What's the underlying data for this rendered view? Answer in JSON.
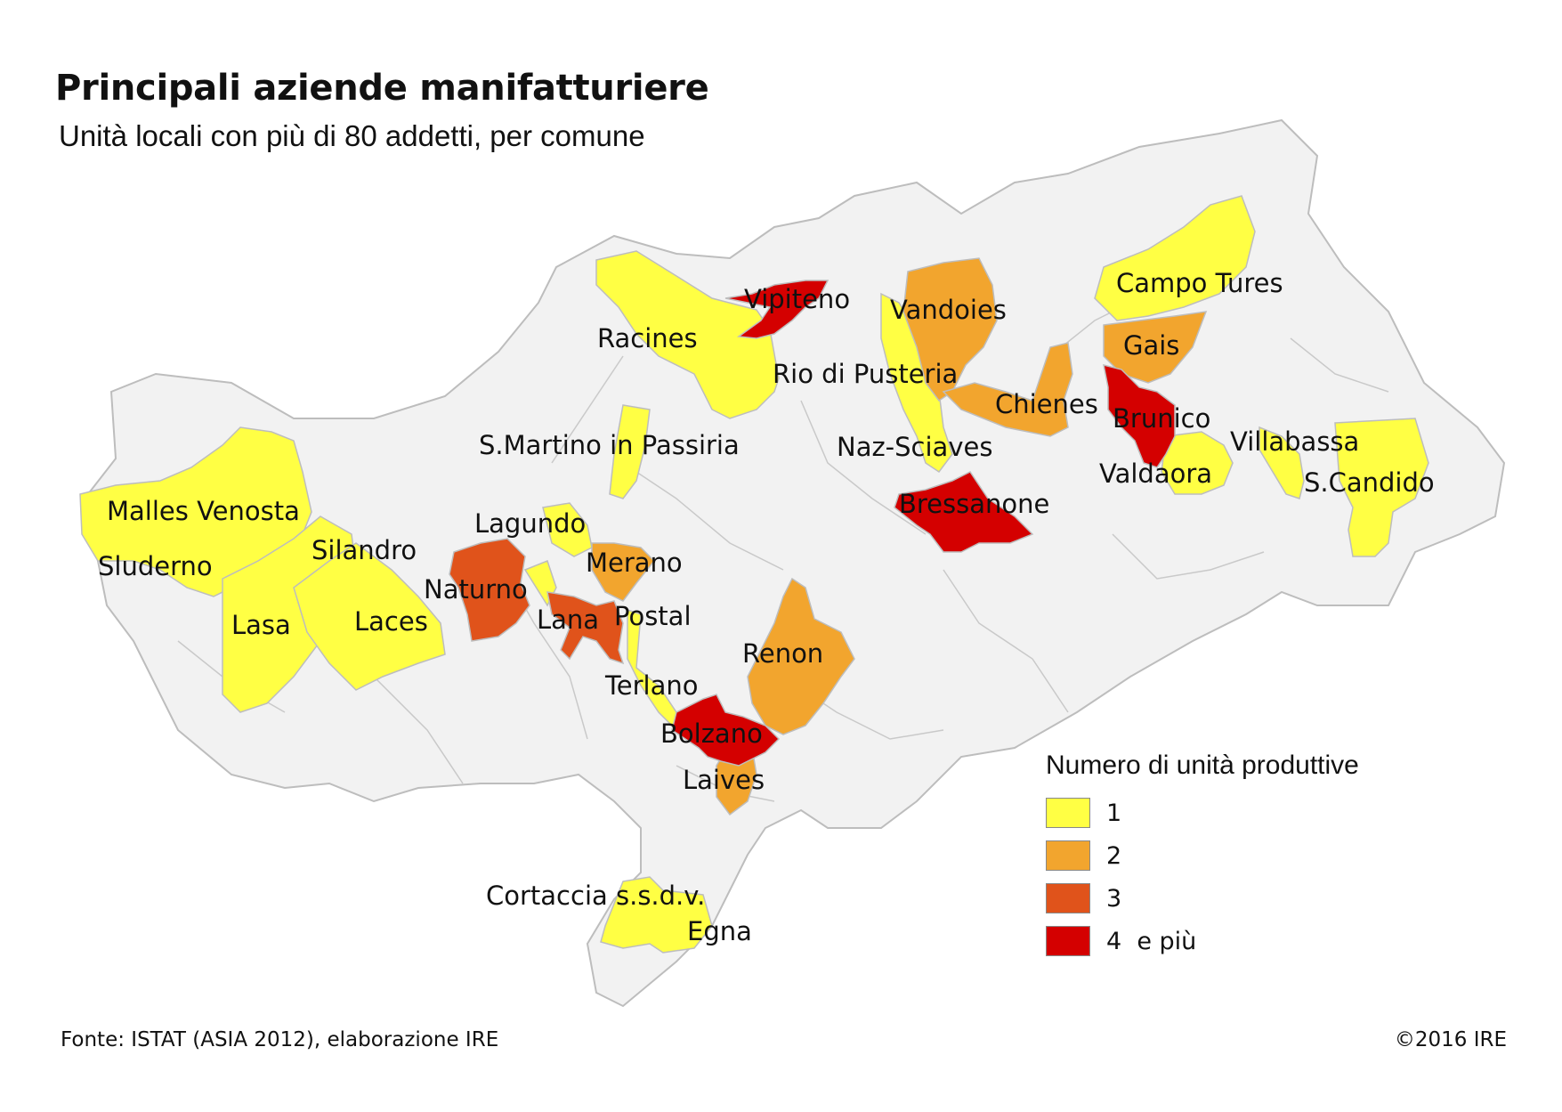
{
  "title": "Principali aziende manifatturiere",
  "subtitle": "Unità locali con più di 80 addetti, per comune",
  "colors": {
    "background_region": "#f2f2f2",
    "border": "#bdbdbd",
    "class_1": "#ffff44",
    "class_2": "#f2a52e",
    "class_3": "#e0531b",
    "class_4": "#d40000"
  },
  "legend": {
    "title": "Numero di unità produttive",
    "items": [
      {
        "label": "1",
        "class": "class_1"
      },
      {
        "label": "2",
        "class": "class_2"
      },
      {
        "label": "3",
        "class": "class_3"
      },
      {
        "label": "4  e più",
        "class": "class_4"
      }
    ]
  },
  "municipalities": [
    {
      "name": "Vipiteno",
      "units_class": "4 e più"
    },
    {
      "name": "Racines",
      "units_class": "1"
    },
    {
      "name": "Vandoies",
      "units_class": "2"
    },
    {
      "name": "Campo Tures",
      "units_class": "1"
    },
    {
      "name": "Gais",
      "units_class": "2"
    },
    {
      "name": "Rio di Pusteria",
      "units_class": "1"
    },
    {
      "name": "Chienes",
      "units_class": "2"
    },
    {
      "name": "Brunico",
      "units_class": "4 e più"
    },
    {
      "name": "S.Martino in Passiria",
      "units_class": "1"
    },
    {
      "name": "Naz-Sciaves",
      "units_class": "1"
    },
    {
      "name": "Villabassa",
      "units_class": "1"
    },
    {
      "name": "Valdaora",
      "units_class": "1"
    },
    {
      "name": "S.Candido",
      "units_class": "1"
    },
    {
      "name": "Bressanone",
      "units_class": "4 e più"
    },
    {
      "name": "Malles Venosta",
      "units_class": "1"
    },
    {
      "name": "Lagundo",
      "units_class": "1"
    },
    {
      "name": "Silandro",
      "units_class": "1"
    },
    {
      "name": "Sluderno",
      "units_class": "1"
    },
    {
      "name": "Merano",
      "units_class": "2"
    },
    {
      "name": "Naturno",
      "units_class": "3"
    },
    {
      "name": "Lana",
      "units_class": "3"
    },
    {
      "name": "Postal",
      "units_class": "1"
    },
    {
      "name": "Lasa",
      "units_class": "1"
    },
    {
      "name": "Laces",
      "units_class": "1"
    },
    {
      "name": "Renon",
      "units_class": "2"
    },
    {
      "name": "Terlano",
      "units_class": "1"
    },
    {
      "name": "Bolzano",
      "units_class": "4 e più"
    },
    {
      "name": "Laives",
      "units_class": "2"
    },
    {
      "name": "Cortaccia s.s.d.v.",
      "units_class": "1"
    },
    {
      "name": "Egna",
      "units_class": "1"
    }
  ],
  "source": "Fonte: ISTAT (ASIA 2012), elaborazione IRE",
  "copyright": "©2016 IRE"
}
